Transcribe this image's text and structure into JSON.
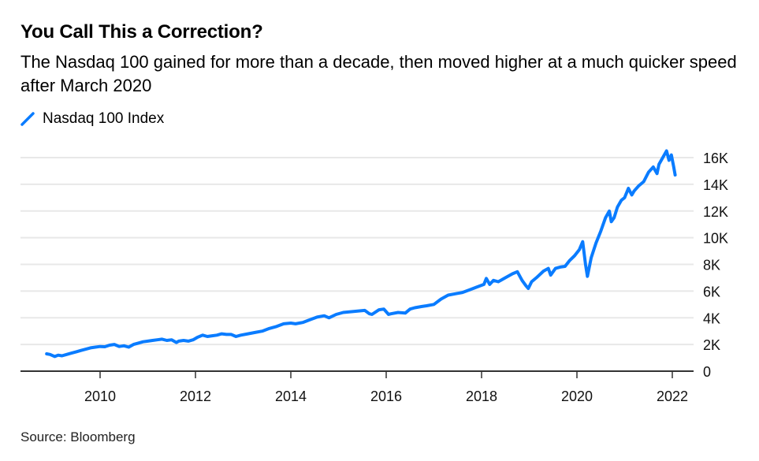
{
  "header": {
    "title": "You Call This a Correction?",
    "subtitle": "The Nasdaq 100 gained for more than a decade, then moved higher at a much quicker speed after March 2020"
  },
  "legend": {
    "items": [
      {
        "label": "Nasdaq 100 Index",
        "color": "#0a7cff",
        "icon": "diagonal-line-icon"
      }
    ]
  },
  "footer": {
    "source": "Source: Bloomberg"
  },
  "colors": {
    "series": "#0a7cff",
    "grid": "#e8e8e8",
    "axis": "#333333"
  },
  "chart_data": {
    "type": "line",
    "title": "You Call This a Correction?",
    "subtitle": "The Nasdaq 100 gained for more than a decade, then moved higher at a much quicker speed after March 2020",
    "xlabel": "",
    "ylabel": "",
    "xlim": [
      2008.5,
      2022.5
    ],
    "ylim": [
      0,
      16800
    ],
    "grid": true,
    "y_axis_side": "right",
    "legend_position": "top-left",
    "x_ticks": [
      2010,
      2012,
      2014,
      2016,
      2018,
      2020,
      2022
    ],
    "x_tick_labels": [
      "2010",
      "2012",
      "2014",
      "2016",
      "2018",
      "2020",
      "2022"
    ],
    "y_ticks": [
      0,
      2000,
      4000,
      6000,
      8000,
      10000,
      12000,
      14000,
      16000
    ],
    "y_tick_labels": [
      "0",
      "2K",
      "4K",
      "6K",
      "8K",
      "10K",
      "12K",
      "14K",
      "16K"
    ],
    "source": "Source: Bloomberg",
    "series": [
      {
        "name": "Nasdaq 100 Index",
        "color": "#0a7cff",
        "x": [
          2008.88,
          2008.95,
          2009.05,
          2009.12,
          2009.2,
          2009.3,
          2009.4,
          2009.5,
          2009.6,
          2009.7,
          2009.8,
          2009.9,
          2010.0,
          2010.1,
          2010.2,
          2010.3,
          2010.4,
          2010.5,
          2010.6,
          2010.7,
          2010.8,
          2010.9,
          2011.0,
          2011.1,
          2011.2,
          2011.3,
          2011.4,
          2011.5,
          2011.6,
          2011.65,
          2011.75,
          2011.85,
          2011.95,
          2012.05,
          2012.15,
          2012.25,
          2012.35,
          2012.45,
          2012.55,
          2012.65,
          2012.75,
          2012.85,
          2012.95,
          2013.1,
          2013.25,
          2013.4,
          2013.55,
          2013.7,
          2013.85,
          2014.0,
          2014.1,
          2014.25,
          2014.4,
          2014.55,
          2014.7,
          2014.8,
          2014.95,
          2015.1,
          2015.25,
          2015.4,
          2015.55,
          2015.65,
          2015.7,
          2015.85,
          2015.95,
          2016.05,
          2016.1,
          2016.25,
          2016.4,
          2016.5,
          2016.6,
          2016.75,
          2016.85,
          2017.0,
          2017.15,
          2017.3,
          2017.45,
          2017.6,
          2017.75,
          2017.9,
          2018.05,
          2018.1,
          2018.17,
          2018.25,
          2018.35,
          2018.5,
          2018.65,
          2018.75,
          2018.85,
          2018.93,
          2018.98,
          2019.05,
          2019.15,
          2019.3,
          2019.4,
          2019.45,
          2019.55,
          2019.65,
          2019.75,
          2019.85,
          2019.95,
          2020.05,
          2020.12,
          2020.18,
          2020.22,
          2020.3,
          2020.4,
          2020.5,
          2020.6,
          2020.68,
          2020.72,
          2020.78,
          2020.85,
          2020.93,
          2021.0,
          2021.08,
          2021.15,
          2021.2,
          2021.3,
          2021.4,
          2021.5,
          2021.6,
          2021.68,
          2021.72,
          2021.8,
          2021.88,
          2021.93,
          2021.98,
          2022.03,
          2022.06
        ],
        "values": [
          1300,
          1250,
          1100,
          1200,
          1150,
          1250,
          1350,
          1450,
          1550,
          1650,
          1750,
          1800,
          1850,
          1830,
          1950,
          2000,
          1850,
          1900,
          1800,
          2000,
          2100,
          2200,
          2250,
          2300,
          2350,
          2400,
          2300,
          2350,
          2150,
          2250,
          2300,
          2250,
          2350,
          2550,
          2700,
          2600,
          2650,
          2700,
          2800,
          2750,
          2750,
          2600,
          2700,
          2800,
          2900,
          3000,
          3200,
          3350,
          3550,
          3600,
          3550,
          3650,
          3850,
          4050,
          4150,
          4000,
          4250,
          4400,
          4450,
          4500,
          4550,
          4300,
          4250,
          4600,
          4650,
          4250,
          4300,
          4400,
          4350,
          4650,
          4750,
          4850,
          4900,
          5000,
          5400,
          5700,
          5800,
          5900,
          6100,
          6300,
          6500,
          6950,
          6500,
          6800,
          6700,
          7000,
          7300,
          7450,
          6800,
          6400,
          6200,
          6700,
          7000,
          7500,
          7700,
          7200,
          7700,
          7800,
          7850,
          8300,
          8650,
          9100,
          9700,
          8000,
          7100,
          8500,
          9600,
          10500,
          11500,
          12000,
          11200,
          11500,
          12300,
          12800,
          13000,
          13700,
          13200,
          13500,
          13900,
          14200,
          14900,
          15300,
          14800,
          15500,
          16000,
          16500,
          15800,
          16200,
          15300,
          14700
        ]
      }
    ]
  }
}
